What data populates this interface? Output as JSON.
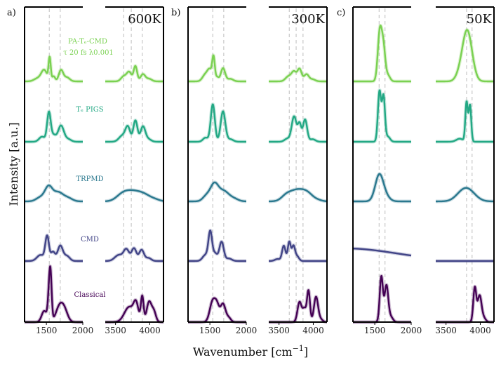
{
  "figure": {
    "ylabel": "Intensity [a.u.]",
    "xlabel": "Wavenumber [cm",
    "xlabel_sup": "−1",
    "xlabel_end": "]"
  },
  "series_labels": [
    {
      "key": "pa",
      "line1": "PA-Tₑ-CMD",
      "line2": "τ 20 fs λ0.001",
      "color": "#7ad151"
    },
    {
      "key": "trpigs",
      "line1": "Tₑ PIGS",
      "color": "#22a884"
    },
    {
      "key": "trpmd",
      "line1": "TRPMD",
      "color": "#2a788e"
    },
    {
      "key": "cmd",
      "line1": "CMD",
      "color": "#414487"
    },
    {
      "key": "classical",
      "line1": "Classical",
      "color": "#440154"
    }
  ],
  "chart_data": {
    "type": "line",
    "panels": [
      {
        "id": "a",
        "panel_label": "a)",
        "temperature": "600K",
        "left_window": {
          "xlim": [
            1200,
            2000
          ],
          "ticks": [
            1500,
            2000
          ],
          "tick_labels": [
            "1500",
            "2000"
          ],
          "guides": [
            1540,
            1690
          ]
        },
        "right_window": {
          "xlim": [
            3350,
            4200
          ],
          "ticks": [
            3500,
            4000
          ],
          "tick_labels": [
            "3500",
            "4000"
          ],
          "guides": [
            3620,
            3730,
            3890
          ]
        },
        "series": [
          {
            "name": "Classical",
            "left": {
              "peaks": [
                [
                  1470,
                  0.22,
                  35
                ],
                [
                  1545,
                  0.78,
                  20
                ],
                [
                  1560,
                  0.4,
                  15
                ],
                [
                  1680,
                  0.3,
                  50
                ],
                [
                  1750,
                  0.2,
                  45
                ]
              ]
            },
            "right": {
              "peaks": [
                [
                  3700,
                  0.3,
                  70
                ],
                [
                  3800,
                  0.32,
                  35
                ],
                [
                  3890,
                  0.5,
                  20
                ],
                [
                  3990,
                  0.4,
                  35
                ],
                [
                  4060,
                  0.2,
                  30
                ]
              ]
            }
          },
          {
            "name": "CMD",
            "left": {
              "peaks": [
                [
                  1420,
                  0.12,
                  50
                ],
                [
                  1510,
                  0.48,
                  25
                ],
                [
                  1590,
                  0.18,
                  30
                ],
                [
                  1690,
                  0.3,
                  35
                ],
                [
                  1780,
                  0.1,
                  40
                ]
              ]
            },
            "right": {
              "peaks": [
                [
                  3550,
                  0.12,
                  60
                ],
                [
                  3660,
                  0.22,
                  40
                ],
                [
                  3770,
                  0.25,
                  35
                ],
                [
                  3880,
                  0.22,
                  35
                ],
                [
                  3980,
                  0.06,
                  40
                ]
              ]
            }
          },
          {
            "name": "TRPMD",
            "left": {
              "peaks": [
                [
                  1420,
                  0.08,
                  60
                ],
                [
                  1530,
                  0.27,
                  50
                ],
                [
                  1660,
                  0.18,
                  70
                ],
                [
                  1800,
                  0.06,
                  60
                ]
              ]
            },
            "right": {
              "peaks": [
                [
                  3600,
                  0.12,
                  90
                ],
                [
                  3760,
                  0.18,
                  110
                ],
                [
                  3930,
                  0.1,
                  90
                ],
                [
                  4080,
                  0.03,
                  70
                ]
              ]
            }
          },
          {
            "name": "TRPIGS",
            "left": {
              "peaks": [
                [
                  1440,
                  0.1,
                  40
                ],
                [
                  1535,
                  0.58,
                  25
                ],
                [
                  1600,
                  0.12,
                  30
                ],
                [
                  1700,
                  0.32,
                  40
                ],
                [
                  1800,
                  0.05,
                  40
                ]
              ]
            },
            "right": {
              "peaks": [
                [
                  3600,
                  0.12,
                  50
                ],
                [
                  3680,
                  0.28,
                  35
                ],
                [
                  3790,
                  0.42,
                  30
                ],
                [
                  3900,
                  0.3,
                  35
                ],
                [
                  3980,
                  0.05,
                  40
                ]
              ]
            }
          },
          {
            "name": "PA-TrCMD",
            "left": {
              "peaks": [
                [
                  1380,
                  0.06,
                  50
                ],
                [
                  1470,
                  0.22,
                  40
                ],
                [
                  1545,
                  0.45,
                  15
                ],
                [
                  1600,
                  0.1,
                  20
                ],
                [
                  1700,
                  0.22,
                  30
                ],
                [
                  1780,
                  0.08,
                  40
                ]
              ]
            },
            "right": {
              "peaks": [
                [
                  3620,
                  0.1,
                  40
                ],
                [
                  3700,
                  0.18,
                  35
                ],
                [
                  3790,
                  0.3,
                  25
                ],
                [
                  3900,
                  0.14,
                  35
                ],
                [
                  3990,
                  0.05,
                  40
                ]
              ]
            }
          }
        ]
      },
      {
        "id": "b",
        "panel_label": "b)",
        "temperature": "300K",
        "left_window": {
          "xlim": [
            1200,
            2000
          ],
          "ticks": [
            1500,
            2000
          ],
          "tick_labels": [
            "1500",
            "2000"
          ],
          "guides": [
            1540,
            1690
          ]
        },
        "right_window": {
          "xlim": [
            3350,
            4200
          ],
          "ticks": [
            3500,
            4000
          ],
          "tick_labels": [
            "3500",
            "4000"
          ],
          "guides": [
            3650,
            3750,
            3850
          ]
        },
        "series": [
          {
            "name": "Classical",
            "left": {
              "peaks": [
                [
                  1540,
                  0.42,
                  40
                ],
                [
                  1600,
                  0.25,
                  30
                ],
                [
                  1680,
                  0.36,
                  35
                ],
                [
                  1760,
                  0.08,
                  30
                ]
              ]
            },
            "right": {
              "peaks": [
                [
                  3800,
                  0.4,
                  30
                ],
                [
                  3870,
                  0.25,
                  25
                ],
                [
                  3930,
                  0.62,
                  22
                ],
                [
                  4040,
                  0.5,
                  30
                ],
                [
                  4110,
                  0.05,
                  30
                ]
              ]
            }
          },
          {
            "name": "CMD",
            "left": {
              "peaks": [
                [
                  1440,
                  0.12,
                  40
                ],
                [
                  1505,
                  0.56,
                  25
                ],
                [
                  1570,
                  0.15,
                  30
                ],
                [
                  1660,
                  0.38,
                  30
                ],
                [
                  1760,
                  0.05,
                  40
                ]
              ]
            },
            "right": {
              "peaks": [
                [
                  3480,
                  0.04,
                  40
                ],
                [
                  3570,
                  0.3,
                  25
                ],
                [
                  3650,
                  0.38,
                  22
                ],
                [
                  3710,
                  0.28,
                  22
                ],
                [
                  3760,
                  0.1,
                  30
                ]
              ]
            }
          },
          {
            "name": "TRPMD",
            "left": {
              "peaks": [
                [
                  1450,
                  0.1,
                  50
                ],
                [
                  1560,
                  0.33,
                  55
                ],
                [
                  1690,
                  0.2,
                  70
                ],
                [
                  1830,
                  0.05,
                  60
                ]
              ]
            },
            "right": {
              "peaks": [
                [
                  3600,
                  0.08,
                  70
                ],
                [
                  3760,
                  0.22,
                  110
                ],
                [
                  3920,
                  0.12,
                  80
                ],
                [
                  4070,
                  0.02,
                  60
                ]
              ]
            }
          },
          {
            "name": "TRPIGS",
            "left": {
              "peaks": [
                [
                  1440,
                  0.08,
                  35
                ],
                [
                  1540,
                  0.74,
                  28
                ],
                [
                  1680,
                  0.6,
                  32
                ],
                [
                  1780,
                  0.05,
                  40
                ]
              ]
            },
            "right": {
              "peaks": [
                [
                  3620,
                  0.06,
                  40
                ],
                [
                  3720,
                  0.5,
                  35
                ],
                [
                  3800,
                  0.34,
                  25
                ],
                [
                  3880,
                  0.44,
                  30
                ],
                [
                  3990,
                  0.05,
                  40
                ]
              ]
            }
          },
          {
            "name": "PA-TrCMD",
            "left": {
              "peaks": [
                [
                  1440,
                  0.14,
                  40
                ],
                [
                  1500,
                  0.2,
                  30
                ],
                [
                  1550,
                  0.46,
                  18
                ],
                [
                  1600,
                  0.08,
                  20
                ],
                [
                  1680,
                  0.26,
                  30
                ],
                [
                  1780,
                  0.05,
                  40
                ]
              ]
            },
            "right": {
              "peaks": [
                [
                  3640,
                  0.1,
                  45
                ],
                [
                  3720,
                  0.18,
                  35
                ],
                [
                  3800,
                  0.24,
                  30
                ],
                [
                  3900,
                  0.14,
                  35
                ],
                [
                  3990,
                  0.04,
                  40
                ]
              ]
            }
          }
        ]
      },
      {
        "id": "c",
        "panel_label": "c)",
        "temperature": "50K",
        "left_window": {
          "xlim": [
            1200,
            2000
          ],
          "ticks": [
            1500,
            2000
          ],
          "tick_labels": [
            "1500",
            "2000"
          ],
          "guides": [
            1560,
            1640
          ]
        },
        "right_window": {
          "xlim": [
            3350,
            4200
          ],
          "ticks": [
            3500,
            4000
          ],
          "tick_labels": [
            "3500",
            "4000"
          ],
          "guides": [
            3800,
            3880
          ]
        },
        "series": [
          {
            "name": "Classical",
            "left": {
              "peaks": [
                [
                  1590,
                  0.9,
                  22
                ],
                [
                  1660,
                  0.72,
                  25
                ],
                [
                  1720,
                  0.1,
                  30
                ]
              ]
            },
            "right": {
              "peaks": [
                [
                  3920,
                  0.68,
                  22
                ],
                [
                  3990,
                  0.52,
                  28
                ],
                [
                  4050,
                  0.08,
                  30
                ]
              ]
            }
          },
          {
            "name": "CMD",
            "left": {
              "peaks": [
                [
                  1100,
                  0.25,
                  700
                ]
              ]
            },
            "right": {
              "peaks": []
            }
          },
          {
            "name": "TRPMD",
            "left": {
              "peaks": [
                [
                  1560,
                  0.5,
                  55
                ],
                [
                  1640,
                  0.1,
                  60
                ]
              ]
            },
            "right": {
              "peaks": [
                [
                  3810,
                  0.24,
                  110
                ],
                [
                  3700,
                  0.05,
                  90
                ]
              ]
            }
          },
          {
            "name": "TRPIGS",
            "left": {
              "peaks": [
                [
                  1565,
                  1.0,
                  22
                ],
                [
                  1620,
                  0.88,
                  20
                ],
                [
                  1680,
                  0.1,
                  30
                ]
              ]
            },
            "right": {
              "peaks": [
                [
                  3800,
                  0.78,
                  18
                ],
                [
                  3850,
                  0.72,
                  18
                ],
                [
                  3700,
                  0.06,
                  50
                ]
              ]
            }
          },
          {
            "name": "PA-TrCMD",
            "left": {
              "peaks": [
                [
                  1570,
                  1.0,
                  28
                ],
                [
                  1620,
                  0.6,
                  25
                ],
                [
                  1680,
                  0.12,
                  30
                ]
              ]
            },
            "right": {
              "peaks": [
                [
                  3810,
                  1.0,
                  70
                ],
                [
                  3700,
                  0.1,
                  60
                ]
              ]
            }
          }
        ]
      }
    ],
    "series_colors": {
      "Classical": "#440154",
      "CMD": "#414487",
      "TRPMD": "#2a788e",
      "TRPIGS": "#22a884",
      "PA-TrCMD": "#7ad151"
    },
    "guide_color": "#cccccc"
  }
}
